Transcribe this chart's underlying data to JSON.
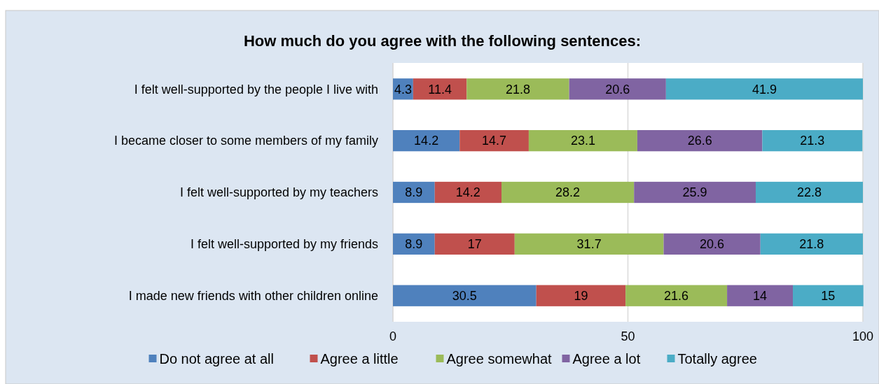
{
  "chart_data": {
    "type": "bar",
    "orientation": "horizontal",
    "stacked": true,
    "title": "How much do you agree with the following sentences:",
    "categories": [
      "I felt well-supported by the people I live with",
      "I became closer to some members of my family",
      "I felt well-supported by my teachers",
      "I felt well-supported by my friends",
      "I made new friends with other children online"
    ],
    "series": [
      {
        "name": "Do not agree at all",
        "color": "#4f81bd",
        "values": [
          4.3,
          14.2,
          8.9,
          8.9,
          30.5
        ]
      },
      {
        "name": "Agree a little",
        "color": "#c0504d",
        "values": [
          11.4,
          14.7,
          14.2,
          17,
          19
        ]
      },
      {
        "name": "Agree somewhat",
        "color": "#9bbb59",
        "values": [
          21.8,
          23.1,
          28.2,
          31.7,
          21.6
        ]
      },
      {
        "name": "Agree a lot",
        "color": "#8064a2",
        "values": [
          20.6,
          26.6,
          25.9,
          20.6,
          14
        ]
      },
      {
        "name": "Totally agree",
        "color": "#4bacc6",
        "values": [
          41.9,
          21.3,
          22.8,
          21.8,
          15
        ]
      }
    ],
    "xlim": [
      0,
      100
    ],
    "xticks": [
      0,
      50,
      100
    ],
    "grid": "x",
    "data_labels": true,
    "legend": "bottom"
  }
}
